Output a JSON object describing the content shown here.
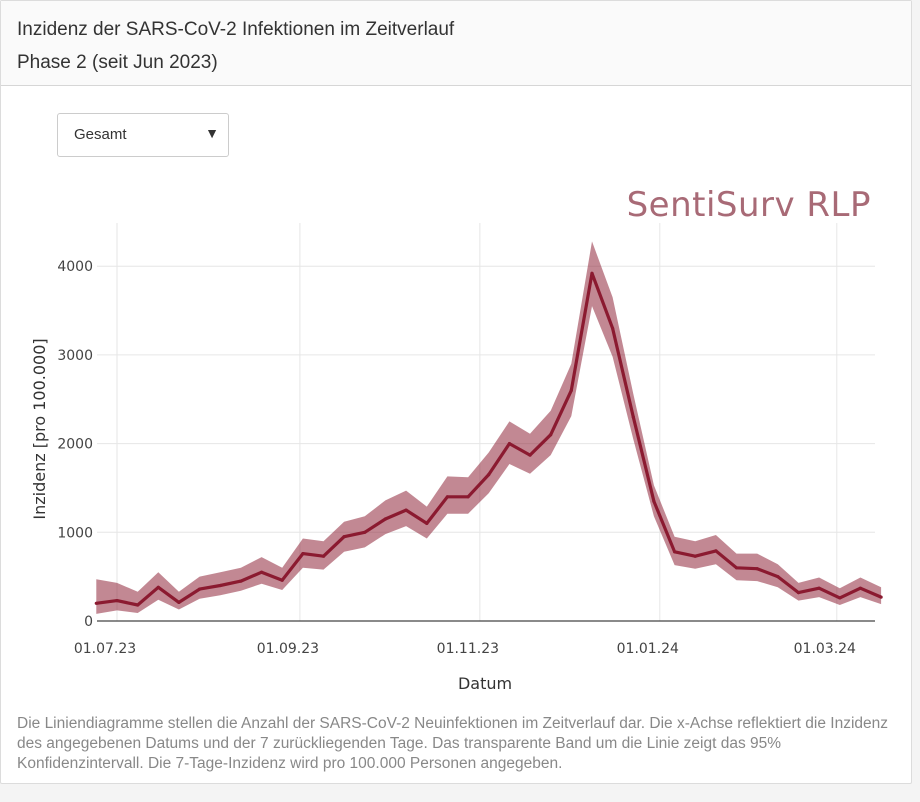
{
  "header": {
    "title_line1": "Inzidenz der SARS-CoV-2 Infektionen im Zeitverlauf",
    "title_line2": "Phase 2 (seit Jun 2023)"
  },
  "filter": {
    "selected": "Gesamt",
    "caret": "▼"
  },
  "brand": "SentiSurv RLP",
  "caption": "Die Liniendiagramme stellen die Anzahl der SARS-CoV-2 Neuinfektionen im Zeitverlauf dar. Die x-Achse reflektiert die Inzidenz des angegebenen Datums und der 7 zurückliegenden Tage. Das transparente Band um die Linie zeigt das 95% Konfidenzintervall. Die 7-Tage-Inzidenz wird pro 100.000 Personen angegeben.",
  "colors": {
    "line": "#8b1a30",
    "band": "#8b1a30"
  },
  "chart_data": {
    "type": "line",
    "xlabel": "Datum",
    "ylabel": "Inzidenz [pro 100.000]",
    "grid": true,
    "ylim": [
      0,
      4500
    ],
    "yticks": [
      0,
      1000,
      2000,
      3000,
      4000
    ],
    "xticks": [
      {
        "day": 0,
        "label": "01.07.23"
      },
      {
        "day": 62,
        "label": "01.09.23"
      },
      {
        "day": 123,
        "label": "01.11.23"
      },
      {
        "day": 184,
        "label": "01.01.24"
      },
      {
        "day": 244,
        "label": "01.03.24"
      }
    ],
    "xlim": [
      0,
      260
    ],
    "series": [
      {
        "name": "7-Tage-Inzidenz",
        "points": [
          {
            "d": -7,
            "v": 200,
            "lo": 80,
            "hi": 470
          },
          {
            "d": 0,
            "v": 230,
            "lo": 120,
            "hi": 430
          },
          {
            "d": 7,
            "v": 180,
            "lo": 90,
            "hi": 330
          },
          {
            "d": 14,
            "v": 380,
            "lo": 240,
            "hi": 550
          },
          {
            "d": 21,
            "v": 210,
            "lo": 130,
            "hi": 330
          },
          {
            "d": 28,
            "v": 360,
            "lo": 250,
            "hi": 500
          },
          {
            "d": 35,
            "v": 400,
            "lo": 290,
            "hi": 550
          },
          {
            "d": 42,
            "v": 450,
            "lo": 340,
            "hi": 600
          },
          {
            "d": 49,
            "v": 550,
            "lo": 420,
            "hi": 720
          },
          {
            "d": 56,
            "v": 460,
            "lo": 350,
            "hi": 600
          },
          {
            "d": 63,
            "v": 760,
            "lo": 600,
            "hi": 930
          },
          {
            "d": 70,
            "v": 730,
            "lo": 580,
            "hi": 900
          },
          {
            "d": 77,
            "v": 950,
            "lo": 780,
            "hi": 1120
          },
          {
            "d": 84,
            "v": 1000,
            "lo": 830,
            "hi": 1180
          },
          {
            "d": 91,
            "v": 1150,
            "lo": 980,
            "hi": 1360
          },
          {
            "d": 98,
            "v": 1250,
            "lo": 1070,
            "hi": 1470
          },
          {
            "d": 105,
            "v": 1100,
            "lo": 930,
            "hi": 1290
          },
          {
            "d": 112,
            "v": 1400,
            "lo": 1210,
            "hi": 1630
          },
          {
            "d": 119,
            "v": 1400,
            "lo": 1210,
            "hi": 1620
          },
          {
            "d": 126,
            "v": 1650,
            "lo": 1440,
            "hi": 1900
          },
          {
            "d": 133,
            "v": 2000,
            "lo": 1770,
            "hi": 2250
          },
          {
            "d": 140,
            "v": 1870,
            "lo": 1660,
            "hi": 2110
          },
          {
            "d": 147,
            "v": 2100,
            "lo": 1870,
            "hi": 2370
          },
          {
            "d": 154,
            "v": 2600,
            "lo": 2310,
            "hi": 2900
          },
          {
            "d": 161,
            "v": 3920,
            "lo": 3550,
            "hi": 4280
          },
          {
            "d": 168,
            "v": 3300,
            "lo": 2980,
            "hi": 3650
          },
          {
            "d": 175,
            "v": 2300,
            "lo": 2050,
            "hi": 2560
          },
          {
            "d": 182,
            "v": 1350,
            "lo": 1180,
            "hi": 1530
          },
          {
            "d": 189,
            "v": 780,
            "lo": 630,
            "hi": 950
          },
          {
            "d": 196,
            "v": 730,
            "lo": 590,
            "hi": 900
          },
          {
            "d": 203,
            "v": 790,
            "lo": 640,
            "hi": 970
          },
          {
            "d": 210,
            "v": 600,
            "lo": 460,
            "hi": 760
          },
          {
            "d": 217,
            "v": 590,
            "lo": 450,
            "hi": 760
          },
          {
            "d": 224,
            "v": 500,
            "lo": 380,
            "hi": 640
          },
          {
            "d": 231,
            "v": 320,
            "lo": 230,
            "hi": 430
          },
          {
            "d": 238,
            "v": 370,
            "lo": 270,
            "hi": 490
          },
          {
            "d": 245,
            "v": 260,
            "lo": 180,
            "hi": 370
          },
          {
            "d": 252,
            "v": 370,
            "lo": 270,
            "hi": 490
          },
          {
            "d": 259,
            "v": 270,
            "lo": 190,
            "hi": 380
          }
        ]
      }
    ]
  }
}
